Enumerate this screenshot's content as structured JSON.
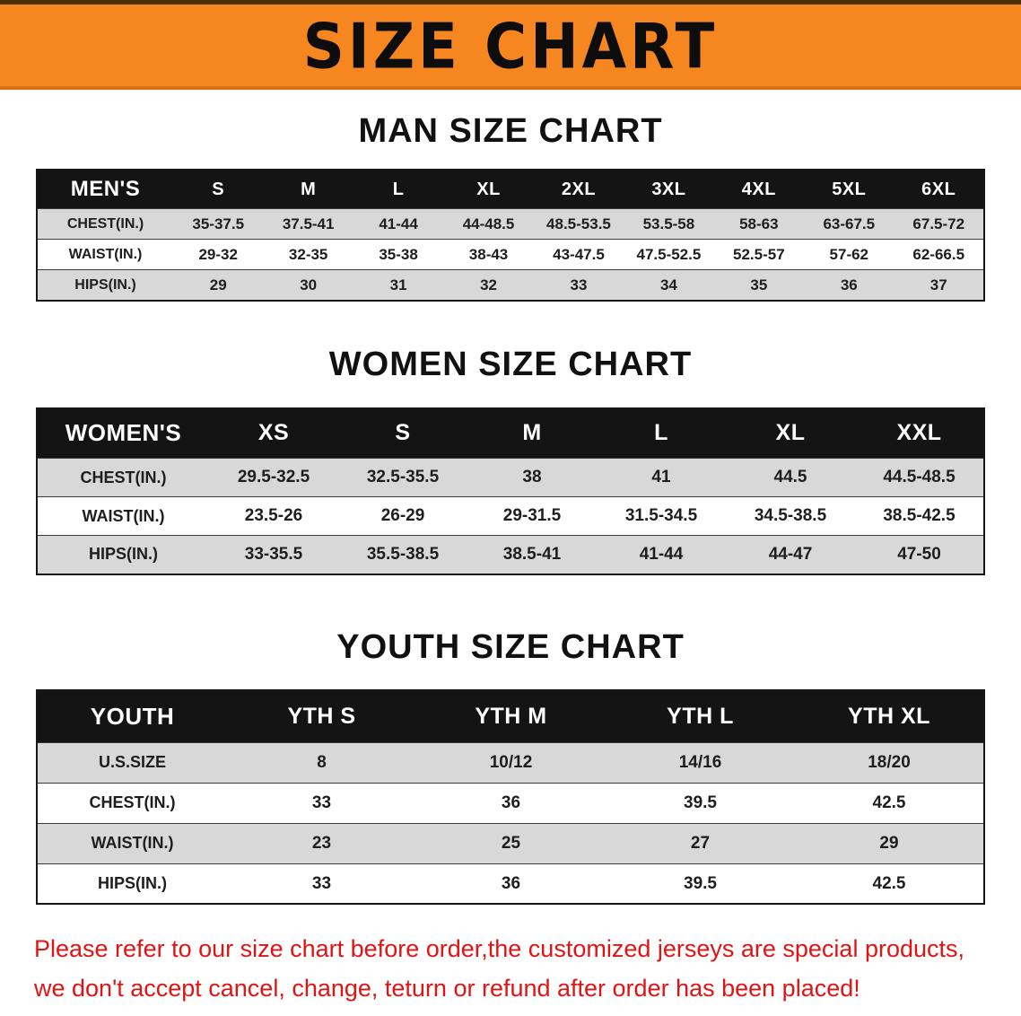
{
  "banner": {
    "title": "SIZE CHART",
    "bg_color": "#f6861f"
  },
  "sections": [
    {
      "key": "men",
      "heading": "MAN SIZE CHART",
      "table": {
        "header": [
          "MEN'S",
          "S",
          "M",
          "L",
          "XL",
          "2XL",
          "3XL",
          "4XL",
          "5XL",
          "6XL"
        ],
        "rows": [
          [
            "CHEST(IN.)",
            "35-37.5",
            "37.5-41",
            "41-44",
            "44-48.5",
            "48.5-53.5",
            "53.5-58",
            "58-63",
            "63-67.5",
            "67.5-72"
          ],
          [
            "WAIST(IN.)",
            "29-32",
            "32-35",
            "35-38",
            "38-43",
            "43-47.5",
            "47.5-52.5",
            "52.5-57",
            "57-62",
            "62-66.5"
          ],
          [
            "HIPS(IN.)",
            "29",
            "30",
            "31",
            "32",
            "33",
            "34",
            "35",
            "36",
            "37"
          ]
        ]
      }
    },
    {
      "key": "women",
      "heading": "WOMEN SIZE CHART",
      "table": {
        "header": [
          "WOMEN'S",
          "XS",
          "S",
          "M",
          "L",
          "XL",
          "XXL"
        ],
        "rows": [
          [
            "CHEST(IN.)",
            "29.5-32.5",
            "32.5-35.5",
            "38",
            "41",
            "44.5",
            "44.5-48.5"
          ],
          [
            "WAIST(IN.)",
            "23.5-26",
            "26-29",
            "29-31.5",
            "31.5-34.5",
            "34.5-38.5",
            "38.5-42.5"
          ],
          [
            "HIPS(IN.)",
            "33-35.5",
            "35.5-38.5",
            "38.5-41",
            "41-44",
            "44-47",
            "47-50"
          ]
        ]
      }
    },
    {
      "key": "youth",
      "heading": "YOUTH SIZE CHART",
      "table": {
        "header": [
          "YOUTH",
          "YTH S",
          "YTH M",
          "YTH L",
          "YTH XL"
        ],
        "rows": [
          [
            "U.S.SIZE",
            "8",
            "10/12",
            "14/16",
            "18/20"
          ],
          [
            "CHEST(IN.)",
            "33",
            "36",
            "39.5",
            "42.5"
          ],
          [
            "WAIST(IN.)",
            "23",
            "25",
            "27",
            "29"
          ],
          [
            "HIPS(IN.)",
            "33",
            "36",
            "39.5",
            "42.5"
          ]
        ]
      }
    }
  ],
  "disclaimer": {
    "line1": "Please refer to our size chart before order,the customized jerseys are special products,",
    "line2": "we don't accept cancel, change, teturn or refund after order has been placed!",
    "color": "#e01414"
  },
  "colors": {
    "banner": "#f6861f",
    "table_header_bg": "#141414",
    "row_shaded": "#d8d8d8",
    "row_plain": "#ffffff"
  }
}
